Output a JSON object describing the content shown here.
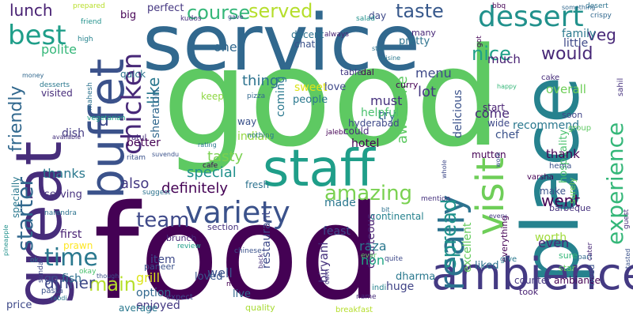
{
  "words": [
    {
      "text": "good",
      "color": "#5ec962"
    },
    {
      "text": "food",
      "color": "#440154"
    },
    {
      "text": "service",
      "color": "#31688e"
    },
    {
      "text": "place",
      "color": "#26828e"
    },
    {
      "text": "great",
      "color": "#472d7b"
    },
    {
      "text": "staff",
      "color": "#1f9e89"
    },
    {
      "text": "buffet",
      "color": "#3b528b"
    },
    {
      "text": "ambience",
      "color": "#443a83"
    },
    {
      "text": "visit",
      "color": "#6ece58"
    },
    {
      "text": "really",
      "color": "#2c728e"
    },
    {
      "text": "variety",
      "color": "#3b528b"
    },
    {
      "text": "experience",
      "color": "#35b779"
    },
    {
      "text": "dessert",
      "color": "#21918c"
    },
    {
      "text": "chicken",
      "color": "#482878"
    },
    {
      "text": "starter",
      "color": "#31688e"
    },
    {
      "text": "best",
      "color": "#1f9e89"
    },
    {
      "text": "course",
      "color": "#35b779"
    },
    {
      "text": "served",
      "color": "#b5de2b"
    },
    {
      "text": "taste",
      "color": "#38598c"
    },
    {
      "text": "time",
      "color": "#2a788e"
    },
    {
      "text": "amazing",
      "color": "#7ad151"
    },
    {
      "text": "spread",
      "color": "#21918c"
    },
    {
      "text": "would",
      "color": "#482878"
    },
    {
      "text": "nice",
      "color": "#1fa188"
    },
    {
      "text": "team",
      "color": "#3e4989"
    },
    {
      "text": "went",
      "color": "#440154"
    },
    {
      "text": "friendly",
      "color": "#31688e"
    },
    {
      "text": "main",
      "color": "#b5de2b"
    },
    {
      "text": "dinner",
      "color": "#3e4989"
    },
    {
      "text": "lunch",
      "color": "#482173"
    },
    {
      "text": "like",
      "color": "#2a788e"
    },
    {
      "text": "also",
      "color": "#443983"
    },
    {
      "text": "veg",
      "color": "#482878"
    },
    {
      "text": "tasty",
      "color": "#7ad151"
    },
    {
      "text": "special",
      "color": "#21918c"
    },
    {
      "text": "u",
      "color": "#3e4989"
    },
    {
      "text": "definitely",
      "color": "#440154"
    },
    {
      "text": "awesome",
      "color": "#5ec962"
    },
    {
      "text": "hospitality",
      "color": "#4ac16d"
    },
    {
      "text": "polite",
      "color": "#35b779"
    },
    {
      "text": "thanks",
      "color": "#2a788e"
    },
    {
      "text": "overall",
      "color": "#6ece58"
    },
    {
      "text": "restaurant",
      "color": "#3e4989"
    },
    {
      "text": "biryani",
      "color": "#46327e"
    },
    {
      "text": "courteous",
      "color": "#482173"
    },
    {
      "text": "delicious",
      "color": "#3b528b"
    },
    {
      "text": "excellent",
      "color": "#65cb5e"
    },
    {
      "text": "sheraton",
      "color": "#31688e"
    },
    {
      "text": "menu",
      "color": "#3e4989"
    },
    {
      "text": "lot",
      "color": "#453781"
    },
    {
      "text": "must",
      "color": "#46327e"
    },
    {
      "text": "try",
      "color": "#31688e"
    },
    {
      "text": "come",
      "color": "#482878"
    },
    {
      "text": "much",
      "color": "#482173"
    },
    {
      "text": "family",
      "color": "#2a788e"
    },
    {
      "text": "little",
      "color": "#3e4989"
    },
    {
      "text": "thing",
      "color": "#2c728e"
    },
    {
      "text": "one",
      "color": "#31688e"
    },
    {
      "text": "made",
      "color": "#2a788e"
    },
    {
      "text": "dish",
      "color": "#443a83"
    },
    {
      "text": "hotel",
      "color": "#440154"
    },
    {
      "text": "feast",
      "color": "#3e4989"
    },
    {
      "text": "worth",
      "color": "#9fda3a"
    },
    {
      "text": "even",
      "color": "#482878"
    },
    {
      "text": "grill",
      "color": "#dde318"
    },
    {
      "text": "raza",
      "color": "#2a788e"
    },
    {
      "text": "non",
      "color": "#22a785"
    },
    {
      "text": "well",
      "color": "#3b528b"
    },
    {
      "text": "loved",
      "color": "#39568c"
    },
    {
      "text": "go",
      "color": "#3e4989"
    },
    {
      "text": "fish",
      "color": "#2d708e"
    },
    {
      "text": "item",
      "color": "#3e4989"
    },
    {
      "text": "option",
      "color": "#31688e"
    },
    {
      "text": "enjoyed",
      "color": "#443983"
    },
    {
      "text": "better",
      "color": "#440154"
    },
    {
      "text": "helpful",
      "color": "#4ac16d"
    },
    {
      "text": "people",
      "color": "#2a788e"
    },
    {
      "text": "keep",
      "color": "#8fd744"
    },
    {
      "text": "sweet",
      "color": "#dde318"
    },
    {
      "text": "coming",
      "color": "#2a788e"
    },
    {
      "text": "indian",
      "color": "#95d840"
    },
    {
      "text": "first",
      "color": "#482173"
    },
    {
      "text": "prawn",
      "color": "#fde725"
    },
    {
      "text": "thank",
      "color": "#440154"
    },
    {
      "text": "make",
      "color": "#3b528b"
    },
    {
      "text": "mutton",
      "color": "#440154"
    },
    {
      "text": "ambiance",
      "color": "#440154"
    },
    {
      "text": "counter",
      "color": "#453781"
    },
    {
      "text": "huge",
      "color": "#414487"
    },
    {
      "text": "liked",
      "color": "#2c728e"
    },
    {
      "text": "dharma",
      "color": "#2a788e"
    },
    {
      "text": "chef",
      "color": "#3b528b"
    },
    {
      "text": "recommend",
      "color": "#2a788e"
    },
    {
      "text": "love",
      "color": "#3e4989"
    },
    {
      "text": "pretty",
      "color": "#2c728e"
    },
    {
      "text": "decent",
      "color": "#2c728e"
    },
    {
      "text": "chat",
      "color": "#3b528b"
    },
    {
      "text": "perfect",
      "color": "#453781"
    },
    {
      "text": "big",
      "color": "#440154"
    },
    {
      "text": "quick",
      "color": "#2c728e"
    },
    {
      "text": "visited",
      "color": "#472d7b"
    },
    {
      "text": "could",
      "color": "#472d7b"
    },
    {
      "text": "hyderabad",
      "color": "#3e4989"
    },
    {
      "text": "curry",
      "color": "#440154"
    },
    {
      "text": "start",
      "color": "#482173"
    },
    {
      "text": "wide",
      "color": "#3e4989"
    },
    {
      "text": "fresh",
      "color": "#2c728e"
    },
    {
      "text": "continental",
      "color": "#26828e"
    },
    {
      "text": "section",
      "color": "#46327e"
    },
    {
      "text": "brunch",
      "color": "#482878"
    },
    {
      "text": "everything",
      "color": "#440154"
    },
    {
      "text": "serving",
      "color": "#46327e"
    },
    {
      "text": "specially",
      "color": "#2a788e"
    },
    {
      "text": "way",
      "color": "#3b528b"
    },
    {
      "text": "table",
      "color": "#443a83"
    },
    {
      "text": "dal",
      "color": "#440154"
    },
    {
      "text": "many",
      "color": "#482878"
    },
    {
      "text": "day",
      "color": "#3e4989"
    },
    {
      "text": "soon",
      "color": "#414487"
    },
    {
      "text": "group",
      "color": "#5ec962"
    },
    {
      "text": "cake",
      "color": "#472d7b"
    },
    {
      "text": "sahil",
      "color": "#46327e"
    },
    {
      "text": "live",
      "color": "#31688e"
    },
    {
      "text": "quality",
      "color": "#a8db34"
    },
    {
      "text": "breakfast",
      "color": "#b5de2b"
    },
    {
      "text": "average",
      "color": "#2a788e"
    },
    {
      "text": "expect",
      "color": "#3e4989"
    },
    {
      "text": "paneer",
      "color": "#3b528b"
    },
    {
      "text": "ratul",
      "color": "#472d7b"
    },
    {
      "text": "ritam",
      "color": "#3b528b"
    },
    {
      "text": "kudos",
      "color": "#46327e"
    },
    {
      "text": "nothing",
      "color": "#2a788e"
    },
    {
      "text": "suggest",
      "color": "#2c728e"
    },
    {
      "text": "pizza",
      "color": "#31688e"
    },
    {
      "text": "always",
      "color": "#482173"
    },
    {
      "text": "jalebi",
      "color": "#440154"
    },
    {
      "text": "indi",
      "color": "#25838e"
    },
    {
      "text": "sunday",
      "color": "#3e4989"
    },
    {
      "text": "price",
      "color": "#3e4989"
    },
    {
      "text": "pasta",
      "color": "#3b528b"
    },
    {
      "text": "mr",
      "color": "#440154"
    },
    {
      "text": "vegetarian",
      "color": "#1fa188"
    },
    {
      "text": "mahesh",
      "color": "#2c728e"
    },
    {
      "text": "suvendu",
      "color": "#3b528b"
    },
    {
      "text": "desserts",
      "color": "#2a788e"
    },
    {
      "text": "available",
      "color": "#46327e"
    },
    {
      "text": "money",
      "color": "#31688e"
    },
    {
      "text": "high",
      "color": "#25838e"
    },
    {
      "text": "friend",
      "color": "#21918c"
    },
    {
      "text": "prepared",
      "color": "#b8de29"
    },
    {
      "text": "bbq",
      "color": "#440154"
    },
    {
      "text": "crispy",
      "color": "#31688e"
    },
    {
      "text": "desert",
      "color": "#2c728e"
    },
    {
      "text": "something",
      "color": "#31688e"
    },
    {
      "text": "salad",
      "color": "#21918c"
    },
    {
      "text": "gave",
      "color": "#3e4989"
    },
    {
      "text": "got",
      "color": "#440154"
    },
    {
      "text": "stay",
      "color": "#2c728e"
    },
    {
      "text": "cuisine",
      "color": "#2a788e"
    },
    {
      "text": "happy",
      "color": "#35b779"
    },
    {
      "text": "mention",
      "color": "#46327e"
    },
    {
      "text": "varsha",
      "color": "#440154"
    },
    {
      "text": "hema",
      "color": "#3b528b"
    },
    {
      "text": "surely",
      "color": "#6ece58"
    },
    {
      "text": "barbeque",
      "color": "#46327e"
    },
    {
      "text": "sure",
      "color": "#35b779"
    },
    {
      "text": "star",
      "color": "#5ec962"
    },
    {
      "text": "part",
      "color": "#31688e"
    },
    {
      "text": "guest",
      "color": "#472d7b"
    },
    {
      "text": "took",
      "color": "#482173"
    },
    {
      "text": "cater",
      "color": "#482878"
    },
    {
      "text": "need",
      "color": "#3b528b"
    },
    {
      "text": "tasted",
      "color": "#3b528b"
    },
    {
      "text": "give",
      "color": "#2a788e"
    },
    {
      "text": "quite",
      "color": "#3e4989"
    },
    {
      "text": "corn",
      "color": "#443983"
    },
    {
      "text": "pineapple",
      "color": "#21918c"
    },
    {
      "text": "okay",
      "color": "#4ac16d"
    },
    {
      "text": "though",
      "color": "#3b528b"
    },
    {
      "text": "rabdi",
      "color": "#2a788e"
    },
    {
      "text": "narendra",
      "color": "#2c728e"
    },
    {
      "text": "review",
      "color": "#1f9e89"
    },
    {
      "text": "cafe",
      "color": "#440154"
    },
    {
      "text": "rating",
      "color": "#2a788e"
    },
    {
      "text": "name",
      "color": "#472d7b"
    },
    {
      "text": "whole",
      "color": "#3e4989"
    },
    {
      "text": "every",
      "color": "#443983"
    },
    {
      "text": "work",
      "color": "#3b528b"
    },
    {
      "text": "back",
      "color": "#46327e"
    },
    {
      "text": "chinese",
      "color": "#3b528b"
    },
    {
      "text": "ever",
      "color": "#5ec962"
    },
    {
      "text": "bit",
      "color": "#2c728e"
    },
    {
      "text": "ok",
      "color": "#2a788e"
    }
  ]
}
